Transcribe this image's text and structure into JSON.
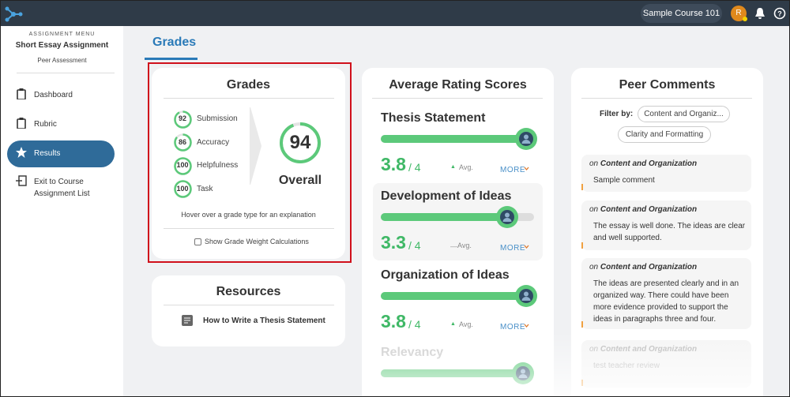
{
  "topbar": {
    "course": "Sample Course 101",
    "avatar": "R"
  },
  "sidebar": {
    "menu_label": "ASSIGNMENT MENU",
    "assignment": "Short Essay Assignment",
    "mode": "Peer Assessment",
    "items": [
      "Dashboard",
      "Rubric",
      "Results",
      "Exit to Course Assignment List"
    ]
  },
  "tab": "Grades",
  "grades": {
    "title": "Grades",
    "items": [
      {
        "value": 92,
        "label": "Submission"
      },
      {
        "value": 86,
        "label": "Accuracy"
      },
      {
        "value": 100,
        "label": "Helpfulness"
      },
      {
        "value": 100,
        "label": "Task"
      }
    ],
    "overall": {
      "value": 94,
      "label": "Overall"
    },
    "hint": "Hover over a grade type for an explanation",
    "checkbox": "Show Grade Weight Calculations"
  },
  "resources": {
    "title": "Resources",
    "links": [
      "How to Write a Thesis Statement"
    ]
  },
  "ratings": {
    "title": "Average Rating Scores",
    "items": [
      {
        "name": "Thesis Statement",
        "score": 3.8,
        "out_of": "/ 4",
        "trend": "▲",
        "avg": "Avg.",
        "more": "MORE"
      },
      {
        "name": "Development of Ideas",
        "score": 3.3,
        "out_of": "/ 4",
        "trend": "—",
        "avg": "Avg.",
        "more": "MORE"
      },
      {
        "name": "Organization of Ideas",
        "score": 3.8,
        "out_of": "/ 4",
        "trend": "▲",
        "avg": "Avg.",
        "more": "MORE"
      },
      {
        "name": "Relevancy"
      }
    ]
  },
  "comments": {
    "title": "Peer Comments",
    "filter_label": "Filter by:",
    "filters": [
      "Content and Organiz...",
      "Clarity and Formatting"
    ],
    "items": [
      {
        "prefix": "on",
        "topic": "Content and Organization",
        "text": "Sample comment"
      },
      {
        "prefix": "on",
        "topic": "Content and Organization",
        "text": "The essay is well done. The ideas are clear and well supported."
      },
      {
        "prefix": "on",
        "topic": "Content and Organization",
        "text": "The ideas are presented clearly and in an organized way. There could have been more evidence provided to support the ideas in paragraphs three and four."
      },
      {
        "prefix": "on",
        "topic": "Content and Organization",
        "text": "test teacher review"
      }
    ]
  }
}
